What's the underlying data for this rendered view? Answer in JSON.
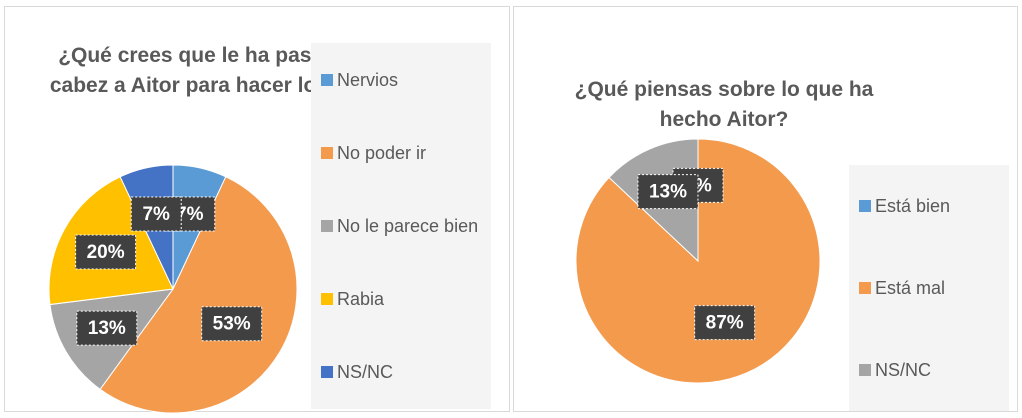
{
  "chart_data": [
    {
      "type": "pie",
      "title": "¿Qué crees que le ha pasado por la cabez a Aitor para hacer lo que hizo?",
      "categories": [
        "Nervios",
        "No poder ir",
        "No le parece bien",
        "Rabia",
        "NS/NC"
      ],
      "values": [
        7,
        53,
        13,
        20,
        7
      ],
      "value_labels": [
        "7%",
        "53%",
        "13%",
        "20%",
        "7%"
      ],
      "colors": [
        "#5b9bd5",
        "#f39a4c",
        "#a5a5a5",
        "#ffc000",
        "#4472c4"
      ],
      "legend": "right"
    },
    {
      "type": "pie",
      "title": "¿Qué piensas sobre lo que ha hecho Aitor?",
      "categories": [
        "Está bien",
        "Está mal",
        "NS/NC"
      ],
      "values": [
        0,
        87,
        13
      ],
      "value_labels": [
        "0%",
        "87%",
        "13%"
      ],
      "colors": [
        "#5b9bd5",
        "#f39a4c",
        "#a5a5a5"
      ],
      "legend": "right"
    }
  ]
}
